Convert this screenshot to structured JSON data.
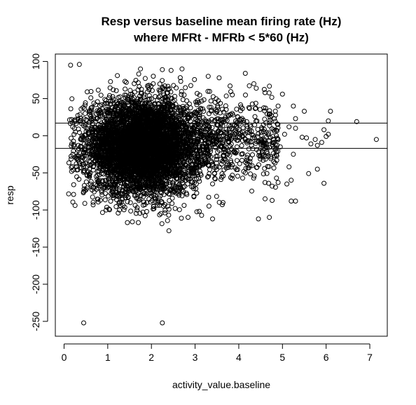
{
  "chart_data": {
    "type": "scatter",
    "title": "Resp versus baseline mean firing rate (Hz)",
    "subtitle": "where MFRt - MFRb < 5*60 (Hz)",
    "xlabel": "activity_value.baseline",
    "ylabel": "resp",
    "xlim": [
      -0.2,
      7.4
    ],
    "ylim": [
      -270,
      110
    ],
    "x_ticks": [
      0,
      1,
      2,
      3,
      4,
      5,
      6,
      7
    ],
    "y_ticks": [
      100,
      50,
      0,
      -50,
      -100,
      -150,
      -200,
      -250
    ],
    "reference_lines_y": [
      17,
      -17
    ],
    "grid": false,
    "legend": "none",
    "marker": "open-circle",
    "color": "#000000",
    "cloud": {
      "center": [
        1.8,
        -15
      ],
      "spread_x": 0.65,
      "spread_y": 32,
      "x_range": [
        0.1,
        4.8
      ],
      "y_range": [
        -120,
        90
      ]
    },
    "outlier_points": [
      [
        0.45,
        -252
      ],
      [
        2.25,
        -252
      ],
      [
        2.4,
        -128
      ],
      [
        0.15,
        95
      ],
      [
        0.35,
        96
      ],
      [
        1.75,
        90
      ],
      [
        2.25,
        89
      ],
      [
        2.45,
        88
      ],
      [
        2.7,
        90
      ],
      [
        3.3,
        80
      ],
      [
        4.15,
        84
      ],
      [
        3.55,
        78
      ],
      [
        3.8,
        67
      ],
      [
        4.4,
        64
      ],
      [
        4.6,
        58
      ],
      [
        5.0,
        56
      ],
      [
        4.9,
        40
      ],
      [
        5.25,
        40
      ],
      [
        5.5,
        33
      ],
      [
        5.3,
        23
      ],
      [
        6.1,
        33
      ],
      [
        6.05,
        20
      ],
      [
        6.7,
        19
      ],
      [
        5.95,
        8
      ],
      [
        5.75,
        -5
      ],
      [
        6.0,
        -1
      ],
      [
        5.9,
        -9
      ],
      [
        5.65,
        -11
      ],
      [
        5.8,
        -13
      ],
      [
        6.05,
        2
      ],
      [
        7.15,
        -5
      ],
      [
        5.6,
        -51
      ],
      [
        5.95,
        -64
      ],
      [
        5.8,
        -45
      ],
      [
        5.15,
        -42
      ],
      [
        5.2,
        -60
      ],
      [
        5.1,
        -65
      ],
      [
        4.9,
        -63
      ],
      [
        5.2,
        -88
      ],
      [
        5.3,
        -88
      ],
      [
        4.45,
        -112
      ],
      [
        4.7,
        -110
      ],
      [
        3.4,
        -112
      ],
      [
        1.45,
        -117
      ],
      [
        1.7,
        -117
      ],
      [
        4.6,
        -63
      ],
      [
        4.8,
        -35
      ],
      [
        5.05,
        2
      ],
      [
        5.45,
        -2
      ],
      [
        5.3,
        10
      ],
      [
        4.75,
        27
      ],
      [
        5.15,
        12
      ],
      [
        5.55,
        -3
      ],
      [
        4.95,
        -15
      ],
      [
        5.25,
        -25
      ]
    ]
  }
}
